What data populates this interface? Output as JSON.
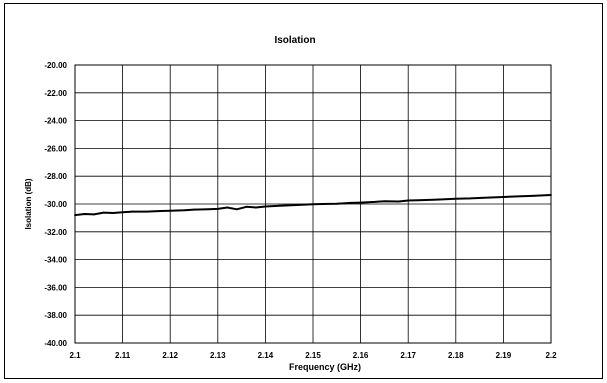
{
  "chart_data": {
    "type": "line",
    "title": "Isolation",
    "xlabel": "Frequency (GHz)",
    "ylabel": "Isolation (dB)",
    "xlim": [
      2.1,
      2.2
    ],
    "ylim": [
      -40.0,
      -20.0
    ],
    "x_ticks": [
      "2.1",
      "2.11",
      "2.12",
      "2.13",
      "2.14",
      "2.15",
      "2.16",
      "2.17",
      "2.18",
      "2.19",
      "2.2"
    ],
    "y_ticks": [
      "-20.00",
      "-22.00",
      "-24.00",
      "-26.00",
      "-28.00",
      "-30.00",
      "-32.00",
      "-34.00",
      "-36.00",
      "-38.00",
      "-40.00"
    ],
    "grid": true,
    "legend": "none",
    "colors": {
      "line": "#000000",
      "grid": "#000000",
      "background": "#ffffff"
    },
    "series": [
      {
        "x": [
          2.1,
          2.102,
          2.104,
          2.106,
          2.108,
          2.11,
          2.112,
          2.115,
          2.118,
          2.12,
          2.123,
          2.125,
          2.128,
          2.13,
          2.132,
          2.134,
          2.136,
          2.138,
          2.14,
          2.143,
          2.146,
          2.15,
          2.152,
          2.155,
          2.158,
          2.16,
          2.163,
          2.165,
          2.168,
          2.17,
          2.173,
          2.176,
          2.18,
          2.183,
          2.186,
          2.19,
          2.193,
          2.196,
          2.2
        ],
        "values": [
          -30.8,
          -30.72,
          -30.75,
          -30.62,
          -30.65,
          -30.6,
          -30.55,
          -30.55,
          -30.5,
          -30.48,
          -30.45,
          -30.4,
          -30.38,
          -30.35,
          -30.25,
          -30.38,
          -30.2,
          -30.25,
          -30.18,
          -30.12,
          -30.08,
          -30.02,
          -30.0,
          -29.98,
          -29.92,
          -29.9,
          -29.85,
          -29.8,
          -29.82,
          -29.75,
          -29.72,
          -29.68,
          -29.62,
          -29.6,
          -29.55,
          -29.5,
          -29.45,
          -29.42,
          -29.35
        ]
      }
    ]
  }
}
